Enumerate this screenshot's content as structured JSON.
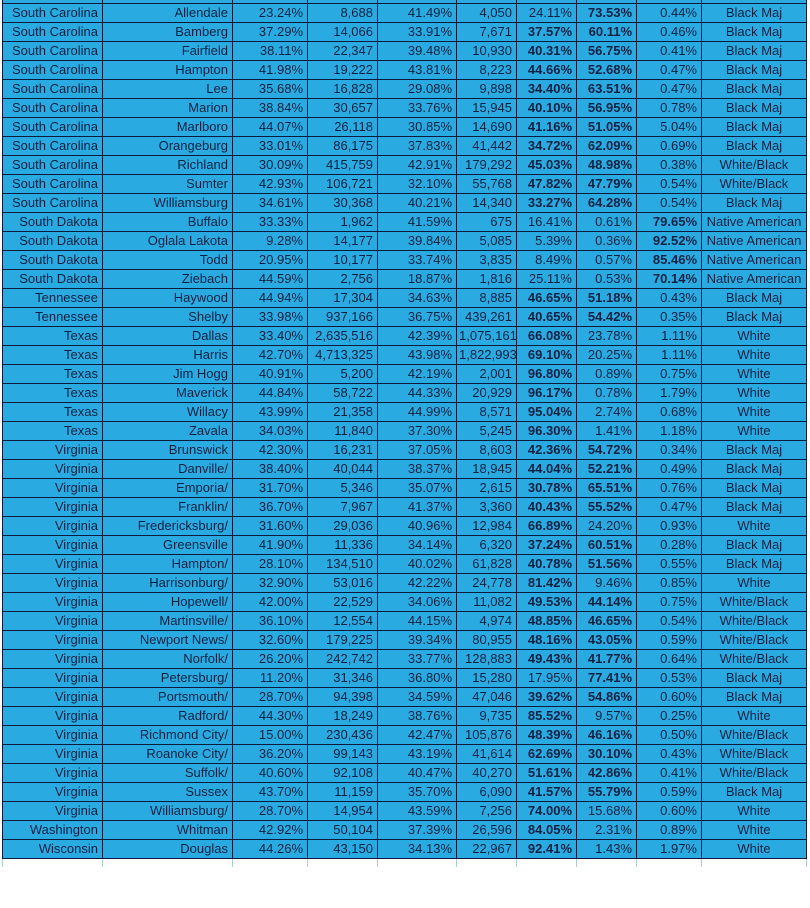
{
  "table": {
    "colors": {
      "cell_fill": "#29ABE2",
      "grid_line": "#0C1C3E",
      "text": "#0E2142",
      "clipped_row_grid": "#AECBDD"
    },
    "bold_rule": {
      "columns": [
        6,
        7,
        8
      ],
      "min_percent": 30
    },
    "rows": [
      [
        "South Carolina",
        "Allendale",
        "23.24%",
        "8,688",
        "41.49%",
        "4,050",
        "24.11%",
        "73.53%",
        "0.44%",
        "Black Maj"
      ],
      [
        "South Carolina",
        "Bamberg",
        "37.29%",
        "14,066",
        "33.91%",
        "7,671",
        "37.57%",
        "60.11%",
        "0.46%",
        "Black Maj"
      ],
      [
        "South Carolina",
        "Fairfield",
        "38.11%",
        "22,347",
        "39.48%",
        "10,930",
        "40.31%",
        "56.75%",
        "0.41%",
        "Black Maj"
      ],
      [
        "South Carolina",
        "Hampton",
        "41.98%",
        "19,222",
        "43.81%",
        "8,223",
        "44.66%",
        "52.68%",
        "0.47%",
        "Black Maj"
      ],
      [
        "South Carolina",
        "Lee",
        "35.68%",
        "16,828",
        "29.08%",
        "9,898",
        "34.40%",
        "63.51%",
        "0.47%",
        "Black Maj"
      ],
      [
        "South Carolina",
        "Marion",
        "38.84%",
        "30,657",
        "33.76%",
        "15,945",
        "40.10%",
        "56.95%",
        "0.78%",
        "Black Maj"
      ],
      [
        "South Carolina",
        "Marlboro",
        "44.07%",
        "26,118",
        "30.85%",
        "14,690",
        "41.16%",
        "51.05%",
        "5.04%",
        "Black Maj"
      ],
      [
        "South Carolina",
        "Orangeburg",
        "33.01%",
        "86,175",
        "37.83%",
        "41,442",
        "34.72%",
        "62.09%",
        "0.69%",
        "Black Maj"
      ],
      [
        "South Carolina",
        "Richland",
        "30.09%",
        "415,759",
        "42.91%",
        "179,292",
        "45.03%",
        "48.98%",
        "0.38%",
        "White/Black"
      ],
      [
        "South Carolina",
        "Sumter",
        "42.93%",
        "106,721",
        "32.10%",
        "55,768",
        "47.82%",
        "47.79%",
        "0.54%",
        "White/Black"
      ],
      [
        "South Carolina",
        "Williamsburg",
        "34.61%",
        "30,368",
        "40.21%",
        "14,340",
        "33.27%",
        "64.28%",
        "0.54%",
        "Black Maj"
      ],
      [
        "South Dakota",
        "Buffalo",
        "33.33%",
        "1,962",
        "41.59%",
        "675",
        "16.41%",
        "0.61%",
        "79.65%",
        "Native American"
      ],
      [
        "South Dakota",
        "Oglala Lakota",
        "9.28%",
        "14,177",
        "39.84%",
        "5,085",
        "5.39%",
        "0.36%",
        "92.52%",
        "Native American"
      ],
      [
        "South Dakota",
        "Todd",
        "20.95%",
        "10,177",
        "33.74%",
        "3,835",
        "8.49%",
        "0.57%",
        "85.46%",
        "Native American"
      ],
      [
        "South Dakota",
        "Ziebach",
        "44.59%",
        "2,756",
        "18.87%",
        "1,816",
        "25.11%",
        "0.53%",
        "70.14%",
        "Native American"
      ],
      [
        "Tennessee",
        "Haywood",
        "44.94%",
        "17,304",
        "34.63%",
        "8,885",
        "46.65%",
        "51.18%",
        "0.43%",
        "Black Maj"
      ],
      [
        "Tennessee",
        "Shelby",
        "33.98%",
        "937,166",
        "36.75%",
        "439,261",
        "40.65%",
        "54.42%",
        "0.35%",
        "Black Maj"
      ],
      [
        "Texas",
        "Dallas",
        "33.40%",
        "2,635,516",
        "42.39%",
        "1,075,161",
        "66.08%",
        "23.78%",
        "1.11%",
        "White"
      ],
      [
        "Texas",
        "Harris",
        "42.70%",
        "4,713,325",
        "43.98%",
        "1,822,993",
        "69.10%",
        "20.25%",
        "1.11%",
        "White"
      ],
      [
        "Texas",
        "Jim Hogg",
        "40.91%",
        "5,200",
        "42.19%",
        "2,001",
        "96.80%",
        "0.89%",
        "0.75%",
        "White"
      ],
      [
        "Texas",
        "Maverick",
        "44.84%",
        "58,722",
        "44.33%",
        "20,929",
        "96.17%",
        "0.78%",
        "1.79%",
        "White"
      ],
      [
        "Texas",
        "Willacy",
        "43.99%",
        "21,358",
        "44.99%",
        "8,571",
        "95.04%",
        "2.74%",
        "0.68%",
        "White"
      ],
      [
        "Texas",
        "Zavala",
        "34.03%",
        "11,840",
        "37.30%",
        "5,245",
        "96.30%",
        "1.41%",
        "1.18%",
        "White"
      ],
      [
        "Virginia",
        "Brunswick",
        "42.30%",
        "16,231",
        "37.05%",
        "8,603",
        "42.36%",
        "54.72%",
        "0.34%",
        "Black Maj"
      ],
      [
        "Virginia",
        "Danville/",
        "38.40%",
        "40,044",
        "38.37%",
        "18,945",
        "44.04%",
        "52.21%",
        "0.49%",
        "Black Maj"
      ],
      [
        "Virginia",
        "Emporia/",
        "31.70%",
        "5,346",
        "35.07%",
        "2,615",
        "30.78%",
        "65.51%",
        "0.76%",
        "Black Maj"
      ],
      [
        "Virginia",
        "Franklin/",
        "36.70%",
        "7,967",
        "41.37%",
        "3,360",
        "40.43%",
        "55.52%",
        "0.47%",
        "Black Maj"
      ],
      [
        "Virginia",
        "Fredericksburg/",
        "31.60%",
        "29,036",
        "40.96%",
        "12,984",
        "66.89%",
        "24.20%",
        "0.93%",
        "White"
      ],
      [
        "Virginia",
        "Greensville",
        "41.90%",
        "11,336",
        "34.14%",
        "6,320",
        "37.24%",
        "60.51%",
        "0.28%",
        "Black Maj"
      ],
      [
        "Virginia",
        "Hampton/",
        "28.10%",
        "134,510",
        "40.02%",
        "61,828",
        "40.78%",
        "51.56%",
        "0.55%",
        "Black Maj"
      ],
      [
        "Virginia",
        "Harrisonburg/",
        "32.90%",
        "53,016",
        "42.22%",
        "24,778",
        "81.42%",
        "9.46%",
        "0.85%",
        "White"
      ],
      [
        "Virginia",
        "Hopewell/",
        "42.00%",
        "22,529",
        "34.06%",
        "11,082",
        "49.53%",
        "44.14%",
        "0.75%",
        "White/Black"
      ],
      [
        "Virginia",
        "Martinsville/",
        "36.10%",
        "12,554",
        "44.15%",
        "4,974",
        "48.85%",
        "46.65%",
        "0.54%",
        "White/Black"
      ],
      [
        "Virginia",
        "Newport News/",
        "32.60%",
        "179,225",
        "39.34%",
        "80,955",
        "48.16%",
        "43.05%",
        "0.59%",
        "White/Black"
      ],
      [
        "Virginia",
        "Norfolk/",
        "26.20%",
        "242,742",
        "33.77%",
        "128,883",
        "49.43%",
        "41.77%",
        "0.64%",
        "White/Black"
      ],
      [
        "Virginia",
        "Petersburg/",
        "11.20%",
        "31,346",
        "36.80%",
        "15,280",
        "17.95%",
        "77.41%",
        "0.53%",
        "Black Maj"
      ],
      [
        "Virginia",
        "Portsmouth/",
        "28.70%",
        "94,398",
        "34.59%",
        "47,046",
        "39.62%",
        "54.86%",
        "0.60%",
        "Black Maj"
      ],
      [
        "Virginia",
        "Radford/",
        "44.30%",
        "18,249",
        "38.76%",
        "9,735",
        "85.52%",
        "9.57%",
        "0.25%",
        "White"
      ],
      [
        "Virginia",
        "Richmond City/",
        "15.00%",
        "230,436",
        "42.47%",
        "105,876",
        "48.39%",
        "46.16%",
        "0.50%",
        "White/Black"
      ],
      [
        "Virginia",
        "Roanoke City/",
        "36.20%",
        "99,143",
        "43.19%",
        "41,614",
        "62.69%",
        "30.10%",
        "0.43%",
        "White/Black"
      ],
      [
        "Virginia",
        "Suffolk/",
        "40.60%",
        "92,108",
        "40.47%",
        "40,270",
        "51.61%",
        "42.86%",
        "0.41%",
        "White/Black"
      ],
      [
        "Virginia",
        "Sussex",
        "43.70%",
        "11,159",
        "35.70%",
        "6,090",
        "41.57%",
        "55.79%",
        "0.59%",
        "Black Maj"
      ],
      [
        "Virginia",
        "Williamsburg/",
        "28.70%",
        "14,954",
        "43.59%",
        "7,256",
        "74.00%",
        "15.68%",
        "0.60%",
        "White"
      ],
      [
        "Washington",
        "Whitman",
        "42.92%",
        "50,104",
        "37.39%",
        "26,596",
        "84.05%",
        "2.31%",
        "0.89%",
        "White"
      ],
      [
        "Wisconsin",
        "Douglas",
        "44.26%",
        "43,150",
        "34.13%",
        "22,967",
        "92.41%",
        "1.43%",
        "1.97%",
        "White"
      ]
    ]
  }
}
